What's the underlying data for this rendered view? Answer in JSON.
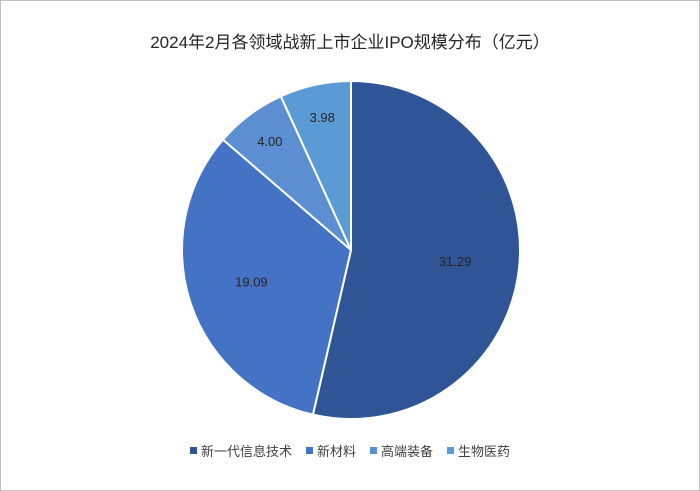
{
  "chart_data": {
    "type": "pie",
    "title": "2024年2月各领域战新上市企业IPO规模分布（亿元）",
    "categories": [
      "新一代信息技术",
      "新材料",
      "高端装备",
      "生物医药"
    ],
    "values": [
      31.29,
      19.09,
      4.0,
      3.98
    ],
    "labels": [
      "31.29",
      "19.09",
      "4.00",
      "3.98"
    ],
    "colors": [
      "#2F5597",
      "#4472C4",
      "#5B8FD1",
      "#5B9BD5"
    ],
    "start_angle": "12 o'clock, clockwise",
    "legend_position": "bottom"
  }
}
